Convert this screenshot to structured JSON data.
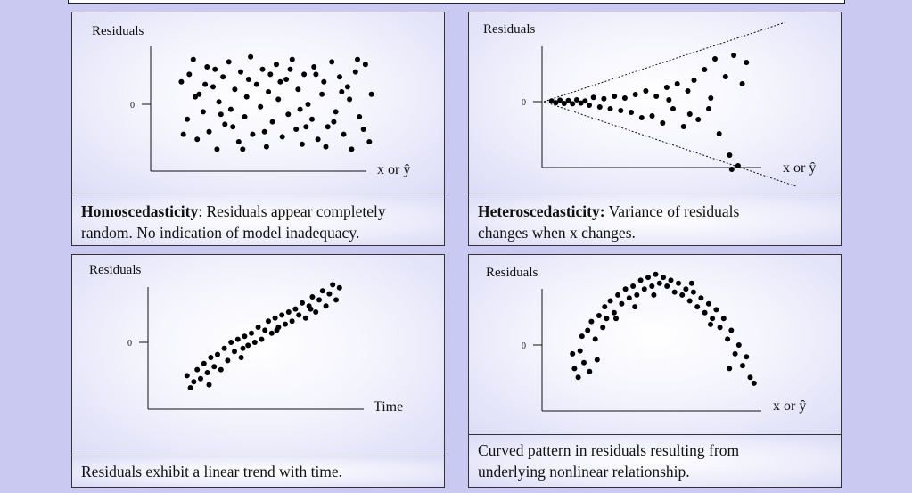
{
  "chart_data": [
    {
      "type": "scatter",
      "ylabel": "Residuals",
      "xlabel": "x or ŷ",
      "ytick": "0",
      "caption_bold": "Homoscedasticity",
      "caption_rest": ": Residuals appear completely",
      "caption_line2": "random.  No indication of model inadequacy.",
      "points": [
        [
          0.02,
          0.45
        ],
        [
          0.05,
          -0.3
        ],
        [
          0.06,
          0.6
        ],
        [
          0.08,
          0.9
        ],
        [
          0.1,
          -0.7
        ],
        [
          0.11,
          0.2
        ],
        [
          0.13,
          -0.15
        ],
        [
          0.15,
          0.75
        ],
        [
          0.16,
          -0.55
        ],
        [
          0.18,
          0.35
        ],
        [
          0.2,
          -0.9
        ],
        [
          0.21,
          0.05
        ],
        [
          0.23,
          0.55
        ],
        [
          0.24,
          -0.4
        ],
        [
          0.26,
          0.85
        ],
        [
          0.27,
          -0.1
        ],
        [
          0.29,
          0.3
        ],
        [
          0.31,
          -0.75
        ],
        [
          0.32,
          0.65
        ],
        [
          0.34,
          -0.25
        ],
        [
          0.35,
          0.15
        ],
        [
          0.37,
          0.95
        ],
        [
          0.38,
          -0.6
        ],
        [
          0.4,
          0.4
        ],
        [
          0.42,
          -0.05
        ],
        [
          0.43,
          0.7
        ],
        [
          0.45,
          -0.85
        ],
        [
          0.46,
          0.25
        ],
        [
          0.48,
          -0.35
        ],
        [
          0.5,
          0.8
        ],
        [
          0.51,
          0.1
        ],
        [
          0.53,
          -0.65
        ],
        [
          0.55,
          0.5
        ],
        [
          0.56,
          -0.2
        ],
        [
          0.58,
          0.9
        ],
        [
          0.6,
          -0.5
        ],
        [
          0.61,
          0.3
        ],
        [
          0.63,
          -0.8
        ],
        [
          0.64,
          0.6
        ],
        [
          0.66,
          0.0
        ],
        [
          0.68,
          -0.3
        ],
        [
          0.69,
          0.75
        ],
        [
          0.71,
          -0.7
        ],
        [
          0.73,
          0.2
        ],
        [
          0.74,
          0.45
        ],
        [
          0.76,
          -0.45
        ],
        [
          0.78,
          0.85
        ],
        [
          0.8,
          -0.15
        ],
        [
          0.82,
          0.55
        ],
        [
          0.84,
          -0.6
        ],
        [
          0.86,
          0.35
        ],
        [
          0.88,
          -0.9
        ],
        [
          0.9,
          0.65
        ],
        [
          0.92,
          -0.25
        ],
        [
          0.95,
          0.8
        ],
        [
          0.97,
          -0.75
        ],
        [
          0.98,
          0.2
        ],
        [
          0.03,
          -0.6
        ],
        [
          0.09,
          0.15
        ],
        [
          0.19,
          0.7
        ],
        [
          0.28,
          -0.45
        ],
        [
          0.36,
          0.5
        ],
        [
          0.44,
          -0.55
        ],
        [
          0.52,
          0.45
        ],
        [
          0.62,
          -0.1
        ],
        [
          0.7,
          0.6
        ],
        [
          0.79,
          -0.35
        ],
        [
          0.87,
          0.1
        ],
        [
          0.94,
          -0.5
        ],
        [
          0.14,
          0.4
        ],
        [
          0.33,
          -0.9
        ],
        [
          0.57,
          0.7
        ],
        [
          0.75,
          -0.85
        ],
        [
          0.91,
          0.9
        ],
        [
          0.22,
          -0.2
        ],
        [
          0.47,
          0.6
        ],
        [
          0.65,
          -0.45
        ],
        [
          0.83,
          0.25
        ]
      ],
      "trend": "none"
    },
    {
      "type": "scatter",
      "ylabel": "Residuals",
      "xlabel": "x or ŷ",
      "ytick": "0",
      "caption_bold": "Heteroscedasticity:",
      "caption_rest": " Variance of residuals",
      "caption_line2": "changes when x changes.",
      "points": [
        [
          0.02,
          0.02
        ],
        [
          0.04,
          -0.03
        ],
        [
          0.06,
          0.04
        ],
        [
          0.08,
          -0.05
        ],
        [
          0.1,
          0.03
        ],
        [
          0.12,
          -0.06
        ],
        [
          0.14,
          0.05
        ],
        [
          0.16,
          -0.04
        ],
        [
          0.18,
          0.02
        ],
        [
          0.2,
          -0.1
        ],
        [
          0.22,
          0.12
        ],
        [
          0.25,
          -0.15
        ],
        [
          0.27,
          0.08
        ],
        [
          0.3,
          -0.2
        ],
        [
          0.32,
          0.15
        ],
        [
          0.35,
          -0.25
        ],
        [
          0.37,
          0.1
        ],
        [
          0.4,
          -0.3
        ],
        [
          0.42,
          0.2
        ],
        [
          0.45,
          -0.45
        ],
        [
          0.47,
          0.3
        ],
        [
          0.5,
          -0.4
        ],
        [
          0.52,
          0.15
        ],
        [
          0.55,
          -0.6
        ],
        [
          0.57,
          0.4
        ],
        [
          0.6,
          -0.2
        ],
        [
          0.62,
          0.5
        ],
        [
          0.65,
          -0.7
        ],
        [
          0.67,
          0.3
        ],
        [
          0.7,
          0.6
        ],
        [
          0.72,
          -0.5
        ],
        [
          0.75,
          0.9
        ],
        [
          0.77,
          -0.2
        ],
        [
          0.8,
          1.2
        ],
        [
          0.82,
          -0.9
        ],
        [
          0.85,
          0.7
        ],
        [
          0.87,
          -1.5
        ],
        [
          0.89,
          1.3
        ],
        [
          0.91,
          -1.8
        ],
        [
          0.93,
          0.5
        ],
        [
          0.95,
          1.1
        ],
        [
          0.88,
          -1.9
        ],
        [
          0.78,
          0.1
        ],
        [
          0.68,
          -0.35
        ],
        [
          0.58,
          0.05
        ]
      ],
      "trend": "funnel"
    },
    {
      "type": "scatter",
      "ylabel": "Residuals",
      "xlabel": "Time",
      "ytick": "0",
      "caption_bold": "",
      "caption_rest": "Residuals exhibit a linear trend with time.",
      "caption_line2": "",
      "points": [
        [
          0.02,
          -1.1
        ],
        [
          0.04,
          -1.5
        ],
        [
          0.06,
          -1.3
        ],
        [
          0.08,
          -0.9
        ],
        [
          0.1,
          -1.2
        ],
        [
          0.12,
          -0.7
        ],
        [
          0.14,
          -1.0
        ],
        [
          0.16,
          -0.5
        ],
        [
          0.18,
          -0.8
        ],
        [
          0.2,
          -0.4
        ],
        [
          0.22,
          -0.9
        ],
        [
          0.24,
          -0.2
        ],
        [
          0.26,
          -0.6
        ],
        [
          0.28,
          0.0
        ],
        [
          0.3,
          -0.3
        ],
        [
          0.32,
          0.1
        ],
        [
          0.34,
          -0.5
        ],
        [
          0.36,
          0.2
        ],
        [
          0.38,
          -0.1
        ],
        [
          0.4,
          0.3
        ],
        [
          0.42,
          0.0
        ],
        [
          0.44,
          0.5
        ],
        [
          0.46,
          0.1
        ],
        [
          0.48,
          0.4
        ],
        [
          0.5,
          0.7
        ],
        [
          0.52,
          0.3
        ],
        [
          0.54,
          0.8
        ],
        [
          0.56,
          0.5
        ],
        [
          0.58,
          0.9
        ],
        [
          0.6,
          0.6
        ],
        [
          0.62,
          1.0
        ],
        [
          0.64,
          0.7
        ],
        [
          0.66,
          1.1
        ],
        [
          0.68,
          0.9
        ],
        [
          0.7,
          1.3
        ],
        [
          0.72,
          0.8
        ],
        [
          0.74,
          1.2
        ],
        [
          0.76,
          1.5
        ],
        [
          0.78,
          1.0
        ],
        [
          0.8,
          1.4
        ],
        [
          0.82,
          1.7
        ],
        [
          0.84,
          1.2
        ],
        [
          0.86,
          1.6
        ],
        [
          0.88,
          1.9
        ],
        [
          0.9,
          1.4
        ],
        [
          0.92,
          1.8
        ],
        [
          0.15,
          -1.4
        ],
        [
          0.35,
          -0.2
        ],
        [
          0.55,
          0.4
        ],
        [
          0.75,
          1.1
        ]
      ],
      "trend": "linear"
    },
    {
      "type": "scatter",
      "ylabel": "Residuals",
      "xlabel": "x or ŷ",
      "ytick": "0",
      "caption_bold": "",
      "caption_rest": "Curved pattern in residuals resulting from",
      "caption_line2": "underlying nonlinear relationship.",
      "points": [
        [
          0.02,
          -0.3
        ],
        [
          0.03,
          -0.8
        ],
        [
          0.05,
          -1.1
        ],
        [
          0.06,
          -0.2
        ],
        [
          0.07,
          0.3
        ],
        [
          0.08,
          -0.6
        ],
        [
          0.1,
          0.5
        ],
        [
          0.11,
          -0.9
        ],
        [
          0.12,
          0.8
        ],
        [
          0.14,
          0.2
        ],
        [
          0.15,
          -0.5
        ],
        [
          0.16,
          1.0
        ],
        [
          0.18,
          0.6
        ],
        [
          0.19,
          1.3
        ],
        [
          0.2,
          0.9
        ],
        [
          0.22,
          1.5
        ],
        [
          0.24,
          1.1
        ],
        [
          0.26,
          1.7
        ],
        [
          0.28,
          1.4
        ],
        [
          0.3,
          1.9
        ],
        [
          0.32,
          1.6
        ],
        [
          0.34,
          2.0
        ],
        [
          0.36,
          1.7
        ],
        [
          0.38,
          2.2
        ],
        [
          0.4,
          1.9
        ],
        [
          0.42,
          2.3
        ],
        [
          0.44,
          2.0
        ],
        [
          0.46,
          2.4
        ],
        [
          0.48,
          2.1
        ],
        [
          0.5,
          2.3
        ],
        [
          0.52,
          2.0
        ],
        [
          0.54,
          2.2
        ],
        [
          0.56,
          1.8
        ],
        [
          0.58,
          2.1
        ],
        [
          0.6,
          1.7
        ],
        [
          0.62,
          1.9
        ],
        [
          0.64,
          1.5
        ],
        [
          0.66,
          1.8
        ],
        [
          0.68,
          1.3
        ],
        [
          0.7,
          1.6
        ],
        [
          0.72,
          1.1
        ],
        [
          0.74,
          1.4
        ],
        [
          0.76,
          0.9
        ],
        [
          0.78,
          1.2
        ],
        [
          0.8,
          0.6
        ],
        [
          0.82,
          0.9
        ],
        [
          0.84,
          0.2
        ],
        [
          0.86,
          0.5
        ],
        [
          0.88,
          -0.3
        ],
        [
          0.9,
          0.0
        ],
        [
          0.92,
          -0.7
        ],
        [
          0.94,
          -0.4
        ],
        [
          0.96,
          -1.1
        ],
        [
          0.98,
          -1.3
        ],
        [
          0.85,
          -0.8
        ],
        [
          0.25,
          0.9
        ],
        [
          0.45,
          1.7
        ],
        [
          0.65,
          2.1
        ],
        [
          0.75,
          0.7
        ],
        [
          0.35,
          1.3
        ]
      ],
      "trend": "curve"
    }
  ]
}
